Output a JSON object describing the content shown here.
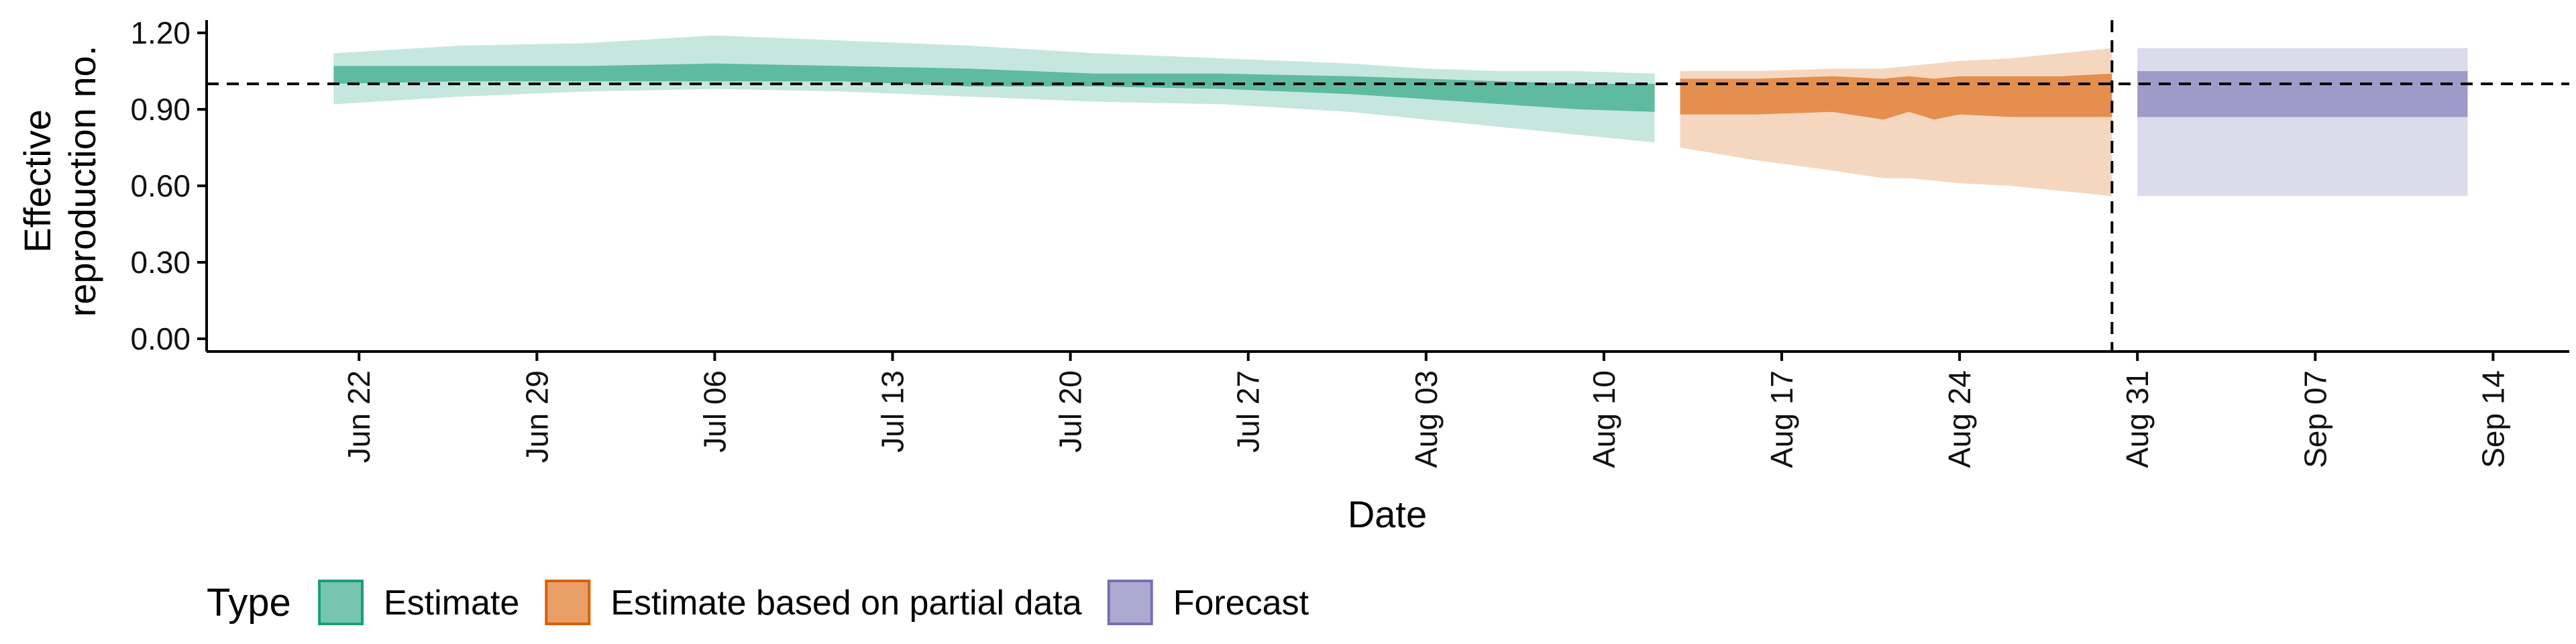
{
  "chart_data": {
    "type": "area",
    "title": "",
    "xlabel": "Date",
    "ylabel": "Effective reproduction no.",
    "ylabel_lines": [
      "Effective",
      "reproduction no."
    ],
    "x_domain": [
      "2020-06-16",
      "2020-09-17"
    ],
    "ylim": [
      -0.05,
      1.25
    ],
    "y_ticks": [
      0.0,
      0.3,
      0.6,
      0.9,
      1.2
    ],
    "y_tick_labels": [
      "0.00",
      "0.30",
      "0.60",
      "0.90",
      "1.20"
    ],
    "x_ticks": [
      "2020-06-22",
      "2020-06-29",
      "2020-07-06",
      "2020-07-13",
      "2020-07-20",
      "2020-07-27",
      "2020-08-03",
      "2020-08-10",
      "2020-08-17",
      "2020-08-24",
      "2020-08-31",
      "2020-09-07",
      "2020-09-14"
    ],
    "x_tick_labels": [
      "Jun 22",
      "Jun 29",
      "Jul 06",
      "Jul 13",
      "Jul 20",
      "Jul 27",
      "Aug 03",
      "Aug 10",
      "Aug 17",
      "Aug 24",
      "Aug 31",
      "Sep 07",
      "Sep 14"
    ],
    "reference_line_y": 1.0,
    "reference_line_x": "2020-08-30",
    "grid": false,
    "legend": {
      "title": "Type",
      "placement": "bottom",
      "entries": [
        "Estimate",
        "Estimate based on partial data",
        "Forecast"
      ]
    },
    "series": [
      {
        "name": "Estimate",
        "color": "#1b9e77",
        "x": [
          "2020-06-21",
          "2020-06-26",
          "2020-07-01",
          "2020-07-06",
          "2020-07-11",
          "2020-07-16",
          "2020-07-21",
          "2020-07-26",
          "2020-07-31",
          "2020-08-03",
          "2020-08-06",
          "2020-08-09",
          "2020-08-12"
        ],
        "upper_90": [
          1.12,
          1.15,
          1.16,
          1.19,
          1.17,
          1.15,
          1.12,
          1.1,
          1.08,
          1.06,
          1.05,
          1.05,
          1.04
        ],
        "upper_50": [
          1.07,
          1.07,
          1.07,
          1.08,
          1.07,
          1.06,
          1.04,
          1.04,
          1.03,
          1.02,
          1.01,
          1.0,
          1.0
        ],
        "lower_50": [
          1.0,
          1.01,
          1.01,
          1.01,
          1.01,
          0.99,
          0.99,
          0.98,
          0.96,
          0.94,
          0.92,
          0.9,
          0.89
        ],
        "lower_90": [
          0.92,
          0.95,
          0.97,
          0.98,
          0.97,
          0.95,
          0.93,
          0.92,
          0.89,
          0.86,
          0.83,
          0.8,
          0.77
        ]
      },
      {
        "name": "Estimate based on partial data",
        "color": "#d95f02",
        "x": [
          "2020-08-13",
          "2020-08-16",
          "2020-08-19",
          "2020-08-21",
          "2020-08-22",
          "2020-08-23",
          "2020-08-24",
          "2020-08-26",
          "2020-08-28",
          "2020-08-30"
        ],
        "upper_90": [
          1.05,
          1.05,
          1.06,
          1.06,
          1.07,
          1.08,
          1.09,
          1.1,
          1.12,
          1.14
        ],
        "upper_50": [
          1.02,
          1.02,
          1.03,
          1.02,
          1.03,
          1.02,
          1.03,
          1.03,
          1.03,
          1.04
        ],
        "lower_50": [
          0.88,
          0.88,
          0.89,
          0.86,
          0.89,
          0.86,
          0.88,
          0.87,
          0.87,
          0.87
        ],
        "lower_90": [
          0.75,
          0.7,
          0.66,
          0.63,
          0.63,
          0.62,
          0.61,
          0.6,
          0.58,
          0.56
        ]
      },
      {
        "name": "Forecast",
        "color": "#7570b3",
        "x": [
          "2020-08-31",
          "2020-09-13"
        ],
        "upper_90": [
          1.14,
          1.14
        ],
        "upper_50": [
          1.05,
          1.05
        ],
        "lower_50": [
          0.87,
          0.87
        ],
        "lower_90": [
          0.56,
          0.56
        ]
      }
    ]
  }
}
